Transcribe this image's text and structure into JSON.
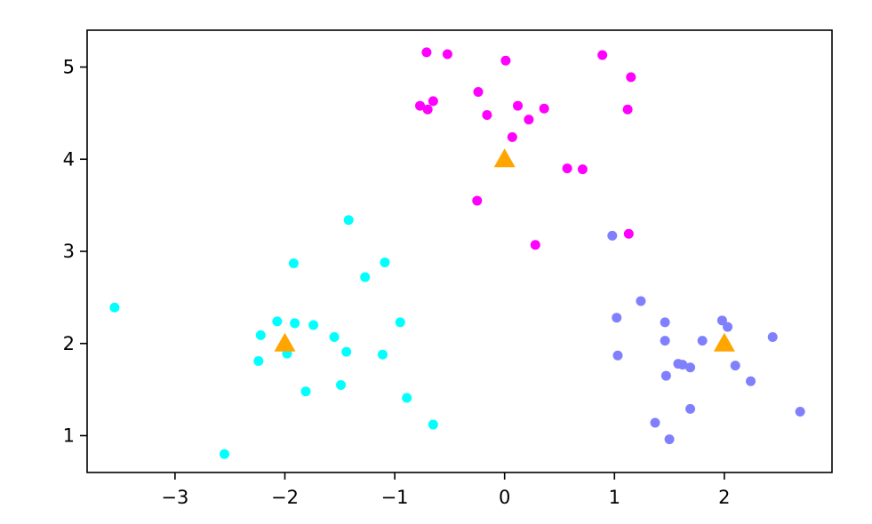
{
  "chart_data": {
    "type": "scatter",
    "title": "",
    "xlabel": "",
    "ylabel": "",
    "xlim": [
      -3.8,
      2.98
    ],
    "ylim": [
      0.6,
      5.4
    ],
    "grid": false,
    "legend": false,
    "x_ticks": [
      -3,
      -2,
      -1,
      0,
      1,
      2
    ],
    "x_tick_labels": [
      "−3",
      "−2",
      "−1",
      "0",
      "1",
      "2"
    ],
    "y_ticks": [
      1,
      2,
      3,
      4,
      5
    ],
    "y_tick_labels": [
      "1",
      "2",
      "3",
      "4",
      "5"
    ],
    "series": [
      {
        "color": "#00ffff",
        "marker": "circle",
        "points": [
          [
            -3.55,
            2.39
          ],
          [
            -2.55,
            0.8
          ],
          [
            -2.24,
            1.81
          ],
          [
            -2.22,
            2.09
          ],
          [
            -2.07,
            2.24
          ],
          [
            -1.98,
            1.89
          ],
          [
            -1.92,
            2.87
          ],
          [
            -1.91,
            2.22
          ],
          [
            -1.81,
            1.48
          ],
          [
            -1.74,
            2.2
          ],
          [
            -1.55,
            2.07
          ],
          [
            -1.49,
            1.55
          ],
          [
            -1.44,
            1.91
          ],
          [
            -1.42,
            3.34
          ],
          [
            -1.27,
            2.72
          ],
          [
            -1.11,
            1.88
          ],
          [
            -1.09,
            2.88
          ],
          [
            -0.95,
            2.23
          ],
          [
            -0.89,
            1.41
          ],
          [
            -0.65,
            1.12
          ]
        ]
      },
      {
        "color": "#ff00ff",
        "marker": "circle",
        "points": [
          [
            -0.71,
            5.16
          ],
          [
            -0.52,
            5.14
          ],
          [
            0.01,
            5.07
          ],
          [
            0.89,
            5.13
          ],
          [
            1.15,
            4.89
          ],
          [
            -0.77,
            4.58
          ],
          [
            -0.7,
            4.54
          ],
          [
            -0.65,
            4.63
          ],
          [
            -0.24,
            4.73
          ],
          [
            -0.16,
            4.48
          ],
          [
            0.12,
            4.58
          ],
          [
            0.22,
            4.43
          ],
          [
            0.36,
            4.55
          ],
          [
            1.12,
            4.54
          ],
          [
            0.07,
            4.24
          ],
          [
            0.57,
            3.9
          ],
          [
            0.71,
            3.89
          ],
          [
            -0.25,
            3.55
          ],
          [
            0.28,
            3.07
          ],
          [
            1.13,
            3.19
          ]
        ]
      },
      {
        "color": "#8080ff",
        "marker": "circle",
        "points": [
          [
            0.98,
            3.17
          ],
          [
            1.24,
            2.46
          ],
          [
            1.02,
            2.28
          ],
          [
            1.46,
            2.23
          ],
          [
            1.98,
            2.25
          ],
          [
            2.03,
            2.18
          ],
          [
            1.46,
            2.03
          ],
          [
            1.8,
            2.03
          ],
          [
            2.44,
            2.07
          ],
          [
            1.03,
            1.87
          ],
          [
            1.58,
            1.78
          ],
          [
            1.62,
            1.77
          ],
          [
            1.69,
            1.74
          ],
          [
            2.1,
            1.76
          ],
          [
            1.47,
            1.65
          ],
          [
            2.24,
            1.59
          ],
          [
            1.37,
            1.14
          ],
          [
            1.69,
            1.29
          ],
          [
            1.5,
            0.96
          ],
          [
            2.69,
            1.26
          ]
        ]
      },
      {
        "color": "#ffa500",
        "marker": "triangle",
        "points": [
          [
            -2.0,
            2.0
          ],
          [
            0.0,
            4.0
          ],
          [
            2.0,
            2.0
          ]
        ]
      }
    ]
  }
}
